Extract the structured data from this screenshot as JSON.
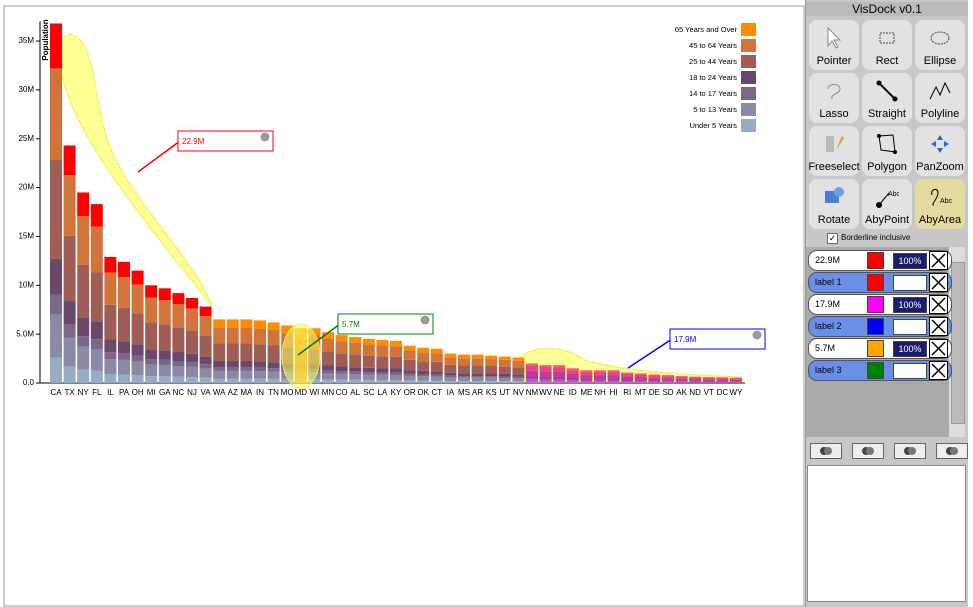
{
  "chart_data": {
    "type": "bar",
    "stacked": true,
    "y_label": "Population",
    "legend": "top-right",
    "categories": [
      "CA",
      "TX",
      "NY",
      "FL",
      "IL",
      "PA",
      "OH",
      "MI",
      "GA",
      "NC",
      "NJ",
      "VA",
      "WA",
      "AZ",
      "MA",
      "IN",
      "TN",
      "MO",
      "MD",
      "WI",
      "MN",
      "CO",
      "AL",
      "SC",
      "LA",
      "KY",
      "OR",
      "OK",
      "CT",
      "IA",
      "MS",
      "AR",
      "KS",
      "UT",
      "NV",
      "NM",
      "WV",
      "NE",
      "ID",
      "ME",
      "NH",
      "HI",
      "RI",
      "MT",
      "DE",
      "SD",
      "AK",
      "ND",
      "VT",
      "DC",
      "WY"
    ],
    "series": [
      {
        "name": "Under 5 Years",
        "color": "#98abc5",
        "values": [
          2.58,
          1.7,
          1.37,
          1.28,
          0.9,
          0.87,
          0.81,
          0.7,
          0.68,
          0.64,
          0.61,
          0.55,
          0.46,
          0.46,
          0.46,
          0.45,
          0.43,
          0.41,
          0.39,
          0.39,
          0.36,
          0.34,
          0.33,
          0.32,
          0.31,
          0.3,
          0.27,
          0.25,
          0.25,
          0.21,
          0.2,
          0.2,
          0.2,
          0.19,
          0.18,
          0.14,
          0.13,
          0.13,
          0.11,
          0.09,
          0.09,
          0.09,
          0.07,
          0.07,
          0.06,
          0.06,
          0.05,
          0.04,
          0.04,
          0.04,
          0.04
        ]
      },
      {
        "name": "5 to 13 Years",
        "color": "#8a89a6",
        "values": [
          4.42,
          2.92,
          2.34,
          2.2,
          1.55,
          1.49,
          1.38,
          1.2,
          1.16,
          1.1,
          1.04,
          0.94,
          0.78,
          0.78,
          0.78,
          0.77,
          0.74,
          0.71,
          0.67,
          0.67,
          0.62,
          0.59,
          0.56,
          0.54,
          0.53,
          0.52,
          0.46,
          0.43,
          0.42,
          0.36,
          0.35,
          0.35,
          0.34,
          0.32,
          0.31,
          0.24,
          0.22,
          0.22,
          0.18,
          0.16,
          0.16,
          0.16,
          0.13,
          0.12,
          0.1,
          0.1,
          0.08,
          0.08,
          0.07,
          0.07,
          0.06
        ]
      },
      {
        "name": "14 to 17 Years",
        "color": "#7b6888",
        "values": [
          2.02,
          1.34,
          1.07,
          1.01,
          0.71,
          0.68,
          0.63,
          0.55,
          0.53,
          0.51,
          0.48,
          0.43,
          0.36,
          0.36,
          0.36,
          0.35,
          0.34,
          0.32,
          0.31,
          0.31,
          0.29,
          0.27,
          0.26,
          0.25,
          0.24,
          0.24,
          0.21,
          0.2,
          0.19,
          0.17,
          0.16,
          0.16,
          0.15,
          0.15,
          0.14,
          0.11,
          0.1,
          0.1,
          0.08,
          0.07,
          0.07,
          0.07,
          0.06,
          0.05,
          0.05,
          0.04,
          0.04,
          0.04,
          0.03,
          0.03,
          0.03
        ]
      },
      {
        "name": "18 to 24 Years",
        "color": "#6b486b",
        "values": [
          3.68,
          2.43,
          1.95,
          1.83,
          1.29,
          1.24,
          1.15,
          1.0,
          0.97,
          0.92,
          0.87,
          0.78,
          0.65,
          0.65,
          0.65,
          0.64,
          0.62,
          0.59,
          0.56,
          0.56,
          0.52,
          0.49,
          0.47,
          0.45,
          0.44,
          0.43,
          0.38,
          0.36,
          0.35,
          0.3,
          0.29,
          0.29,
          0.28,
          0.27,
          0.26,
          0.2,
          0.18,
          0.18,
          0.15,
          0.13,
          0.13,
          0.13,
          0.11,
          0.1,
          0.09,
          0.08,
          0.07,
          0.06,
          0.06,
          0.06,
          0.05
        ]
      },
      {
        "name": "25 to 44 Years",
        "color": "#a05d56",
        "values": [
          10.12,
          6.68,
          5.36,
          5.03,
          3.55,
          3.41,
          3.16,
          2.75,
          2.67,
          2.53,
          2.39,
          2.15,
          1.79,
          1.79,
          1.79,
          1.76,
          1.71,
          1.62,
          1.54,
          1.54,
          1.43,
          1.35,
          1.29,
          1.24,
          1.21,
          1.18,
          1.05,
          0.99,
          0.96,
          0.83,
          0.8,
          0.8,
          0.77,
          0.74,
          0.72,
          0.55,
          0.5,
          0.5,
          0.41,
          0.36,
          0.36,
          0.36,
          0.29,
          0.27,
          0.24,
          0.22,
          0.19,
          0.18,
          0.17,
          0.16,
          0.15
        ]
      },
      {
        "name": "45 to 64 Years",
        "color": "#d0743c",
        "values": [
          9.38,
          6.2,
          4.97,
          4.67,
          3.29,
          3.16,
          2.93,
          2.55,
          2.47,
          2.35,
          2.22,
          1.99,
          1.66,
          1.66,
          1.66,
          1.63,
          1.58,
          1.5,
          1.43,
          1.43,
          1.33,
          1.25,
          1.2,
          1.15,
          1.12,
          1.1,
          0.97,
          0.92,
          0.89,
          0.77,
          0.74,
          0.74,
          0.71,
          0.69,
          0.66,
          0.51,
          0.46,
          0.46,
          0.38,
          0.33,
          0.33,
          0.33,
          0.27,
          0.25,
          0.22,
          0.2,
          0.18,
          0.16,
          0.16,
          0.15,
          0.14
        ]
      },
      {
        "name": "65 Years and Over",
        "color": "#ff8c00",
        "values": [
          4.6,
          3.04,
          2.44,
          2.29,
          1.61,
          1.55,
          1.44,
          1.25,
          1.21,
          1.15,
          1.09,
          0.98,
          0.81,
          0.81,
          0.81,
          0.8,
          0.78,
          0.74,
          0.7,
          0.7,
          0.65,
          0.61,
          0.59,
          0.56,
          0.55,
          0.54,
          0.48,
          0.45,
          0.44,
          0.38,
          0.36,
          0.36,
          0.35,
          0.34,
          0.33,
          0.25,
          0.23,
          0.23,
          0.19,
          0.16,
          0.16,
          0.16,
          0.13,
          0.12,
          0.11,
          0.1,
          0.09,
          0.08,
          0.08,
          0.07,
          0.07
        ]
      }
    ],
    "ylim": [
      0,
      37
    ],
    "yticks": [
      {
        "value": 0,
        "label": "0.0"
      },
      {
        "value": 5,
        "label": "5.0M"
      },
      {
        "value": 10,
        "label": "10M"
      },
      {
        "value": 15,
        "label": "15M"
      },
      {
        "value": 20,
        "label": "20M"
      },
      {
        "value": 25,
        "label": "25M"
      },
      {
        "value": 30,
        "label": "30M"
      },
      {
        "value": 35,
        "label": "35M"
      }
    ]
  },
  "toolbar": {
    "title": "VisDock v0.1",
    "tools": [
      "Pointer",
      "Rect",
      "Ellipse",
      "Lasso",
      "Straight",
      "Polyline",
      "Freeselect",
      "Polygon",
      "PanZoom",
      "Rotate",
      "AbyPoint",
      "AbyArea"
    ],
    "active": "AbyArea",
    "borderline": {
      "label": "Borderline inclusive",
      "checked": true
    }
  },
  "queries": [
    {
      "label": "22.9M",
      "color": "#ff0000",
      "opacity": "100%"
    },
    {
      "label": "label 1",
      "color": "#ff0000"
    },
    {
      "label": "17.9M",
      "color": "#ff00ff",
      "opacity": "100%"
    },
    {
      "label": "label 2",
      "color": "#0000ff"
    },
    {
      "label": "5.7M",
      "color": "#ffa500",
      "opacity": "100%"
    },
    {
      "label": "label 3",
      "color": "#008000"
    }
  ]
}
